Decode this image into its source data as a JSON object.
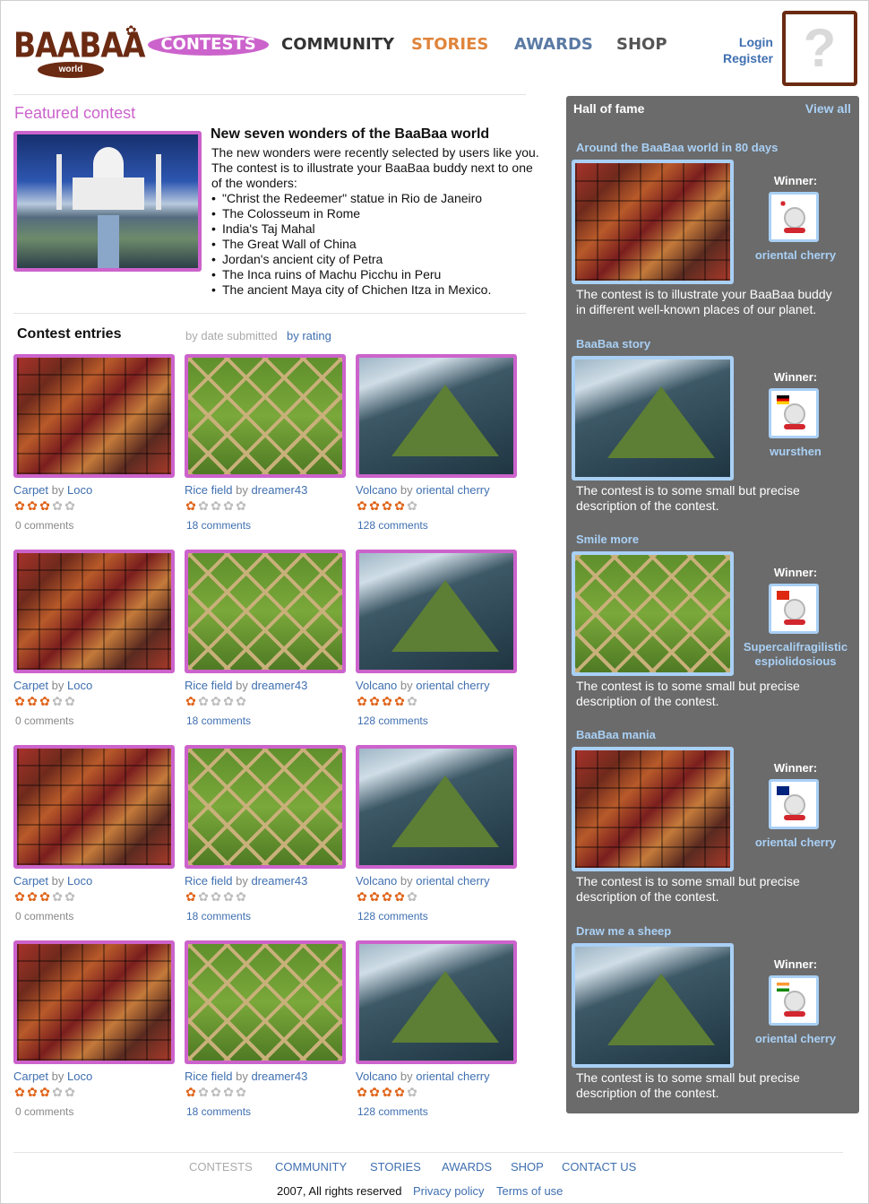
{
  "logo": {
    "text": "BAABAA",
    "sub": "world"
  },
  "nav": {
    "contests": "CONTESTS",
    "community": "COMMUNITY",
    "stories": "STORIES",
    "awards": "AWARDS",
    "shop": "SHOP"
  },
  "auth": {
    "login": "Login",
    "register": "Register",
    "avatar_placeholder": "?"
  },
  "featured": {
    "section_title": "Featured contest",
    "heading": "New seven wonders of the BaaBaa world",
    "description": "The new wonders were recently selected by users like you. The contest is to illustrate your BaaBaa buddy next to one of the wonders:",
    "wonders": [
      "\"Christ the Redeemer\" statue in Rio de Janeiro",
      "The Colosseum in Rome",
      "India's Taj Mahal",
      "The Great Wall of China",
      "Jordan's ancient city of Petra",
      "The Inca ruins of Machu Picchu in Peru",
      "The ancient Maya city of Chichen Itza in Mexico."
    ]
  },
  "entries": {
    "title": "Contest entries",
    "sort_by_date": "by date submitted",
    "sort_by_rating": "by rating",
    "by_word": "by",
    "rows": [
      [
        {
          "title": "Carpet",
          "author": "Loco",
          "rating": 3,
          "comments": "0 comments",
          "image": "carpet"
        },
        {
          "title": "Rice field",
          "author": "dreamer43",
          "rating": 1,
          "comments": "18 comments",
          "image": "rice"
        },
        {
          "title": "Volcano",
          "author": "oriental cherry",
          "rating": 4,
          "comments": "128 comments",
          "image": "volcano"
        }
      ],
      [
        {
          "title": "Carpet",
          "author": "Loco",
          "rating": 3,
          "comments": "0 comments",
          "image": "carpet"
        },
        {
          "title": "Rice field",
          "author": "dreamer43",
          "rating": 1,
          "comments": "18 comments",
          "image": "rice"
        },
        {
          "title": "Volcano",
          "author": "oriental cherry",
          "rating": 4,
          "comments": "128 comments",
          "image": "volcano"
        }
      ],
      [
        {
          "title": "Carpet",
          "author": "Loco",
          "rating": 3,
          "comments": "0 comments",
          "image": "carpet"
        },
        {
          "title": "Rice field",
          "author": "dreamer43",
          "rating": 1,
          "comments": "18 comments",
          "image": "rice"
        },
        {
          "title": "Volcano",
          "author": "oriental cherry",
          "rating": 4,
          "comments": "128 comments",
          "image": "volcano"
        }
      ],
      [
        {
          "title": "Carpet",
          "author": "Loco",
          "rating": 3,
          "comments": "0 comments",
          "image": "carpet"
        },
        {
          "title": "Rice field",
          "author": "dreamer43",
          "rating": 1,
          "comments": "18 comments",
          "image": "rice"
        },
        {
          "title": "Volcano",
          "author": "oriental cherry",
          "rating": 4,
          "comments": "128 comments",
          "image": "volcano"
        }
      ]
    ]
  },
  "hall_of_fame": {
    "title": "Hall of fame",
    "view_all": "View all",
    "winner_label": "Winner:",
    "items": [
      {
        "name": "Around the BaaBaa world in 80 days",
        "image": "carpet",
        "winner": "oriental cherry",
        "flag": "japan",
        "description": "The contest is to illustrate your BaaBaa buddy in different well-known places of our planet."
      },
      {
        "name": "BaaBaa story",
        "image": "volcano",
        "winner": "wursthen",
        "flag": "germany",
        "description": "The contest is to some small but precise description of the contest."
      },
      {
        "name": "Smile more",
        "image": "rice",
        "winner": "Supercalifragilistic espiolidosious",
        "flag": "china",
        "description": "The contest is to some small but precise description of the contest."
      },
      {
        "name": "BaaBaa mania",
        "image": "carpet",
        "winner": "oriental cherry",
        "flag": "australia",
        "description": "The contest is to some small but precise description of the contest."
      },
      {
        "name": "Draw me a sheep",
        "image": "volcano",
        "winner": "oriental cherry",
        "flag": "india",
        "description": "The contest is to some small but precise description of the contest."
      }
    ]
  },
  "footer": {
    "nav": [
      "CONTESTS",
      "COMMUNITY",
      "STORIES",
      "AWARDS",
      "SHOP",
      "CONTACT US"
    ],
    "copyright": "2007, All rights reserved",
    "privacy": "Privacy policy",
    "terms": "Terms of use"
  },
  "colors": {
    "accent_pink": "#cc63cc",
    "brand_brown": "#6b2a12",
    "link_blue": "#3f6fb0",
    "hof_bg": "#6b6b6b",
    "hof_link": "#a9d0f5",
    "star_on": "#e0641a"
  }
}
